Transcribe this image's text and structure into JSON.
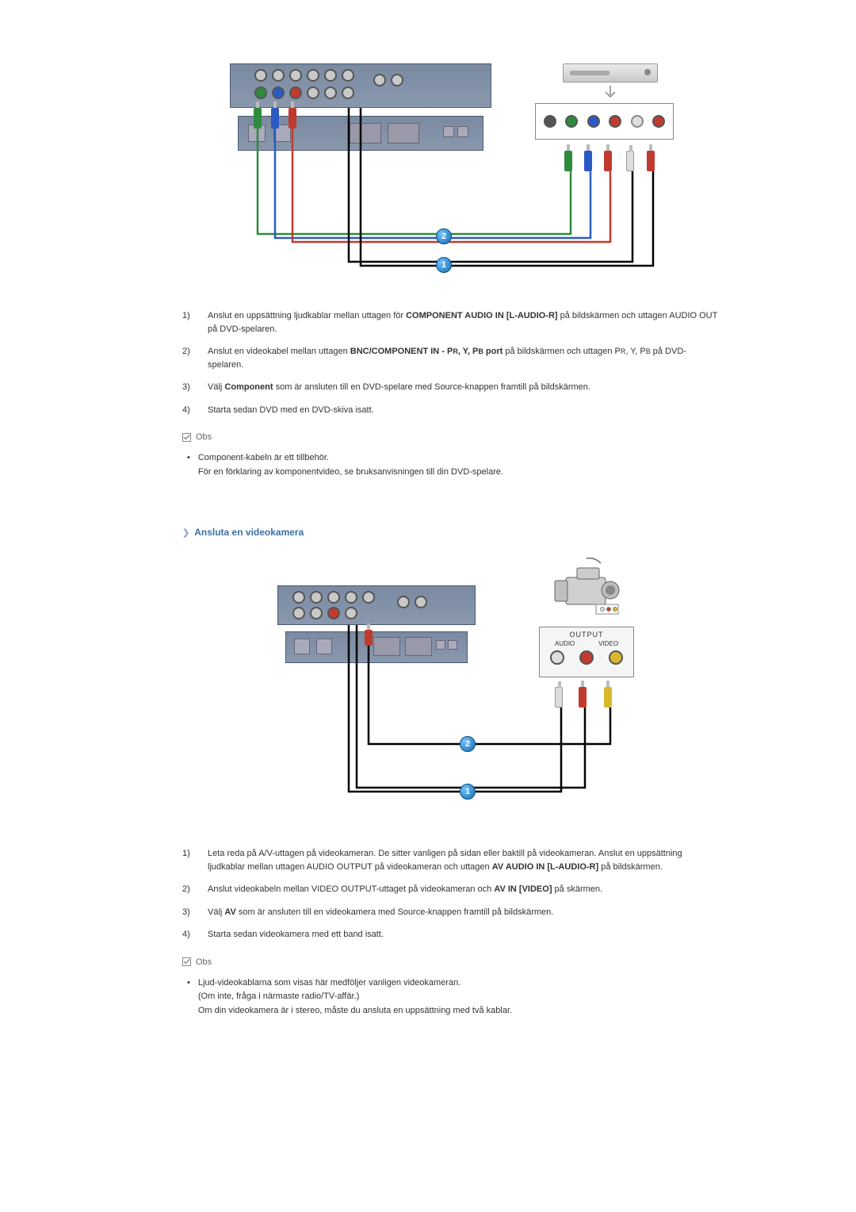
{
  "diagram1": {
    "markers": [
      "1",
      "2"
    ],
    "port_colors": {
      "svideo": "#555555",
      "green": "#2e8b3d",
      "blue": "#2a5bc4",
      "red": "#c13a2e",
      "white": "#dddddd"
    },
    "cable_colors": {
      "green": "#2e8b3d",
      "blue": "#2a5bc4",
      "red": "#c13a2e",
      "white": "#dddddd",
      "black": "#000000"
    }
  },
  "steps1": [
    {
      "num": "1)",
      "parts": [
        {
          "t": "Anslut en uppsättning ljudkablar mellan uttagen för "
        },
        {
          "t": "COMPONENT AUDIO IN [L-AUDIO-R]",
          "bold": true
        },
        {
          "t": " på bildskärmen och uttagen AUDIO OUT på DVD-spelaren."
        }
      ]
    },
    {
      "num": "2)",
      "parts": [
        {
          "t": "Anslut en videokabel mellan uttagen "
        },
        {
          "t": "BNC/COMPONENT IN - P",
          "bold": true
        },
        {
          "t": "R",
          "bold": true,
          "sub": true
        },
        {
          "t": ", Y, P",
          "bold": true
        },
        {
          "t": "B",
          "bold": true,
          "sub": true
        },
        {
          "t": " port",
          "bold": true
        },
        {
          "t": " på bildskärmen och uttagen P"
        },
        {
          "t": "R",
          "sub": true
        },
        {
          "t": ", Y, P"
        },
        {
          "t": "B",
          "sub": true
        },
        {
          "t": " på DVD-spelaren."
        }
      ]
    },
    {
      "num": "3)",
      "parts": [
        {
          "t": "Välj "
        },
        {
          "t": "Component",
          "bold": true
        },
        {
          "t": " som är ansluten till en DVD-spelare med Source-knappen framtill på bildskärmen."
        }
      ]
    },
    {
      "num": "4)",
      "parts": [
        {
          "t": "Starta sedan DVD med en DVD-skiva isatt."
        }
      ]
    }
  ],
  "obs_label": "Obs",
  "note1": [
    "Component-kabeln är ett tillbehör.",
    "För en förklaring av komponentvideo, se bruksanvisningen till din DVD-spelare."
  ],
  "section2_title": "Ansluta en videokamera",
  "diagram2": {
    "markers": [
      "1",
      "2"
    ],
    "output_label": "OUTPUT",
    "audio_label": "AUDIO",
    "video_label": "VIDEO",
    "jack_colors": {
      "white": "#dddddd",
      "red": "#c13a2e",
      "yellow": "#d9b82e"
    }
  },
  "steps2": [
    {
      "num": "1)",
      "parts": [
        {
          "t": "Leta reda på A/V-uttagen på videokameran. De sitter vanligen på sidan eller baktill på videokameran. Anslut en uppsättning ljudkablar mellan uttagen AUDIO OUTPUT på videokameran och uttagen "
        },
        {
          "t": "AV AUDIO IN [L-AUDIO-R]",
          "bold": true
        },
        {
          "t": " på bildskärmen."
        }
      ]
    },
    {
      "num": "2)",
      "parts": [
        {
          "t": "Anslut videokabeln mellan VIDEO OUTPUT-uttaget på videokameran och "
        },
        {
          "t": "AV IN [VIDEO]",
          "bold": true
        },
        {
          "t": " på skärmen."
        }
      ]
    },
    {
      "num": "3)",
      "parts": [
        {
          "t": "Välj "
        },
        {
          "t": "AV",
          "bold": true
        },
        {
          "t": " som är ansluten till en videokamera med Source-knappen framtill på bildskärmen."
        }
      ]
    },
    {
      "num": "4)",
      "parts": [
        {
          "t": "Starta sedan videokamera med ett band isatt."
        }
      ]
    }
  ],
  "note2": [
    "Ljud-videokablarna som visas här medföljer vanligen videokameran.",
    "(Om inte, fråga i närmaste radio/TV-affär.)",
    "Om din videokamera är i stereo, måste du ansluta en uppsättning med två kablar."
  ]
}
